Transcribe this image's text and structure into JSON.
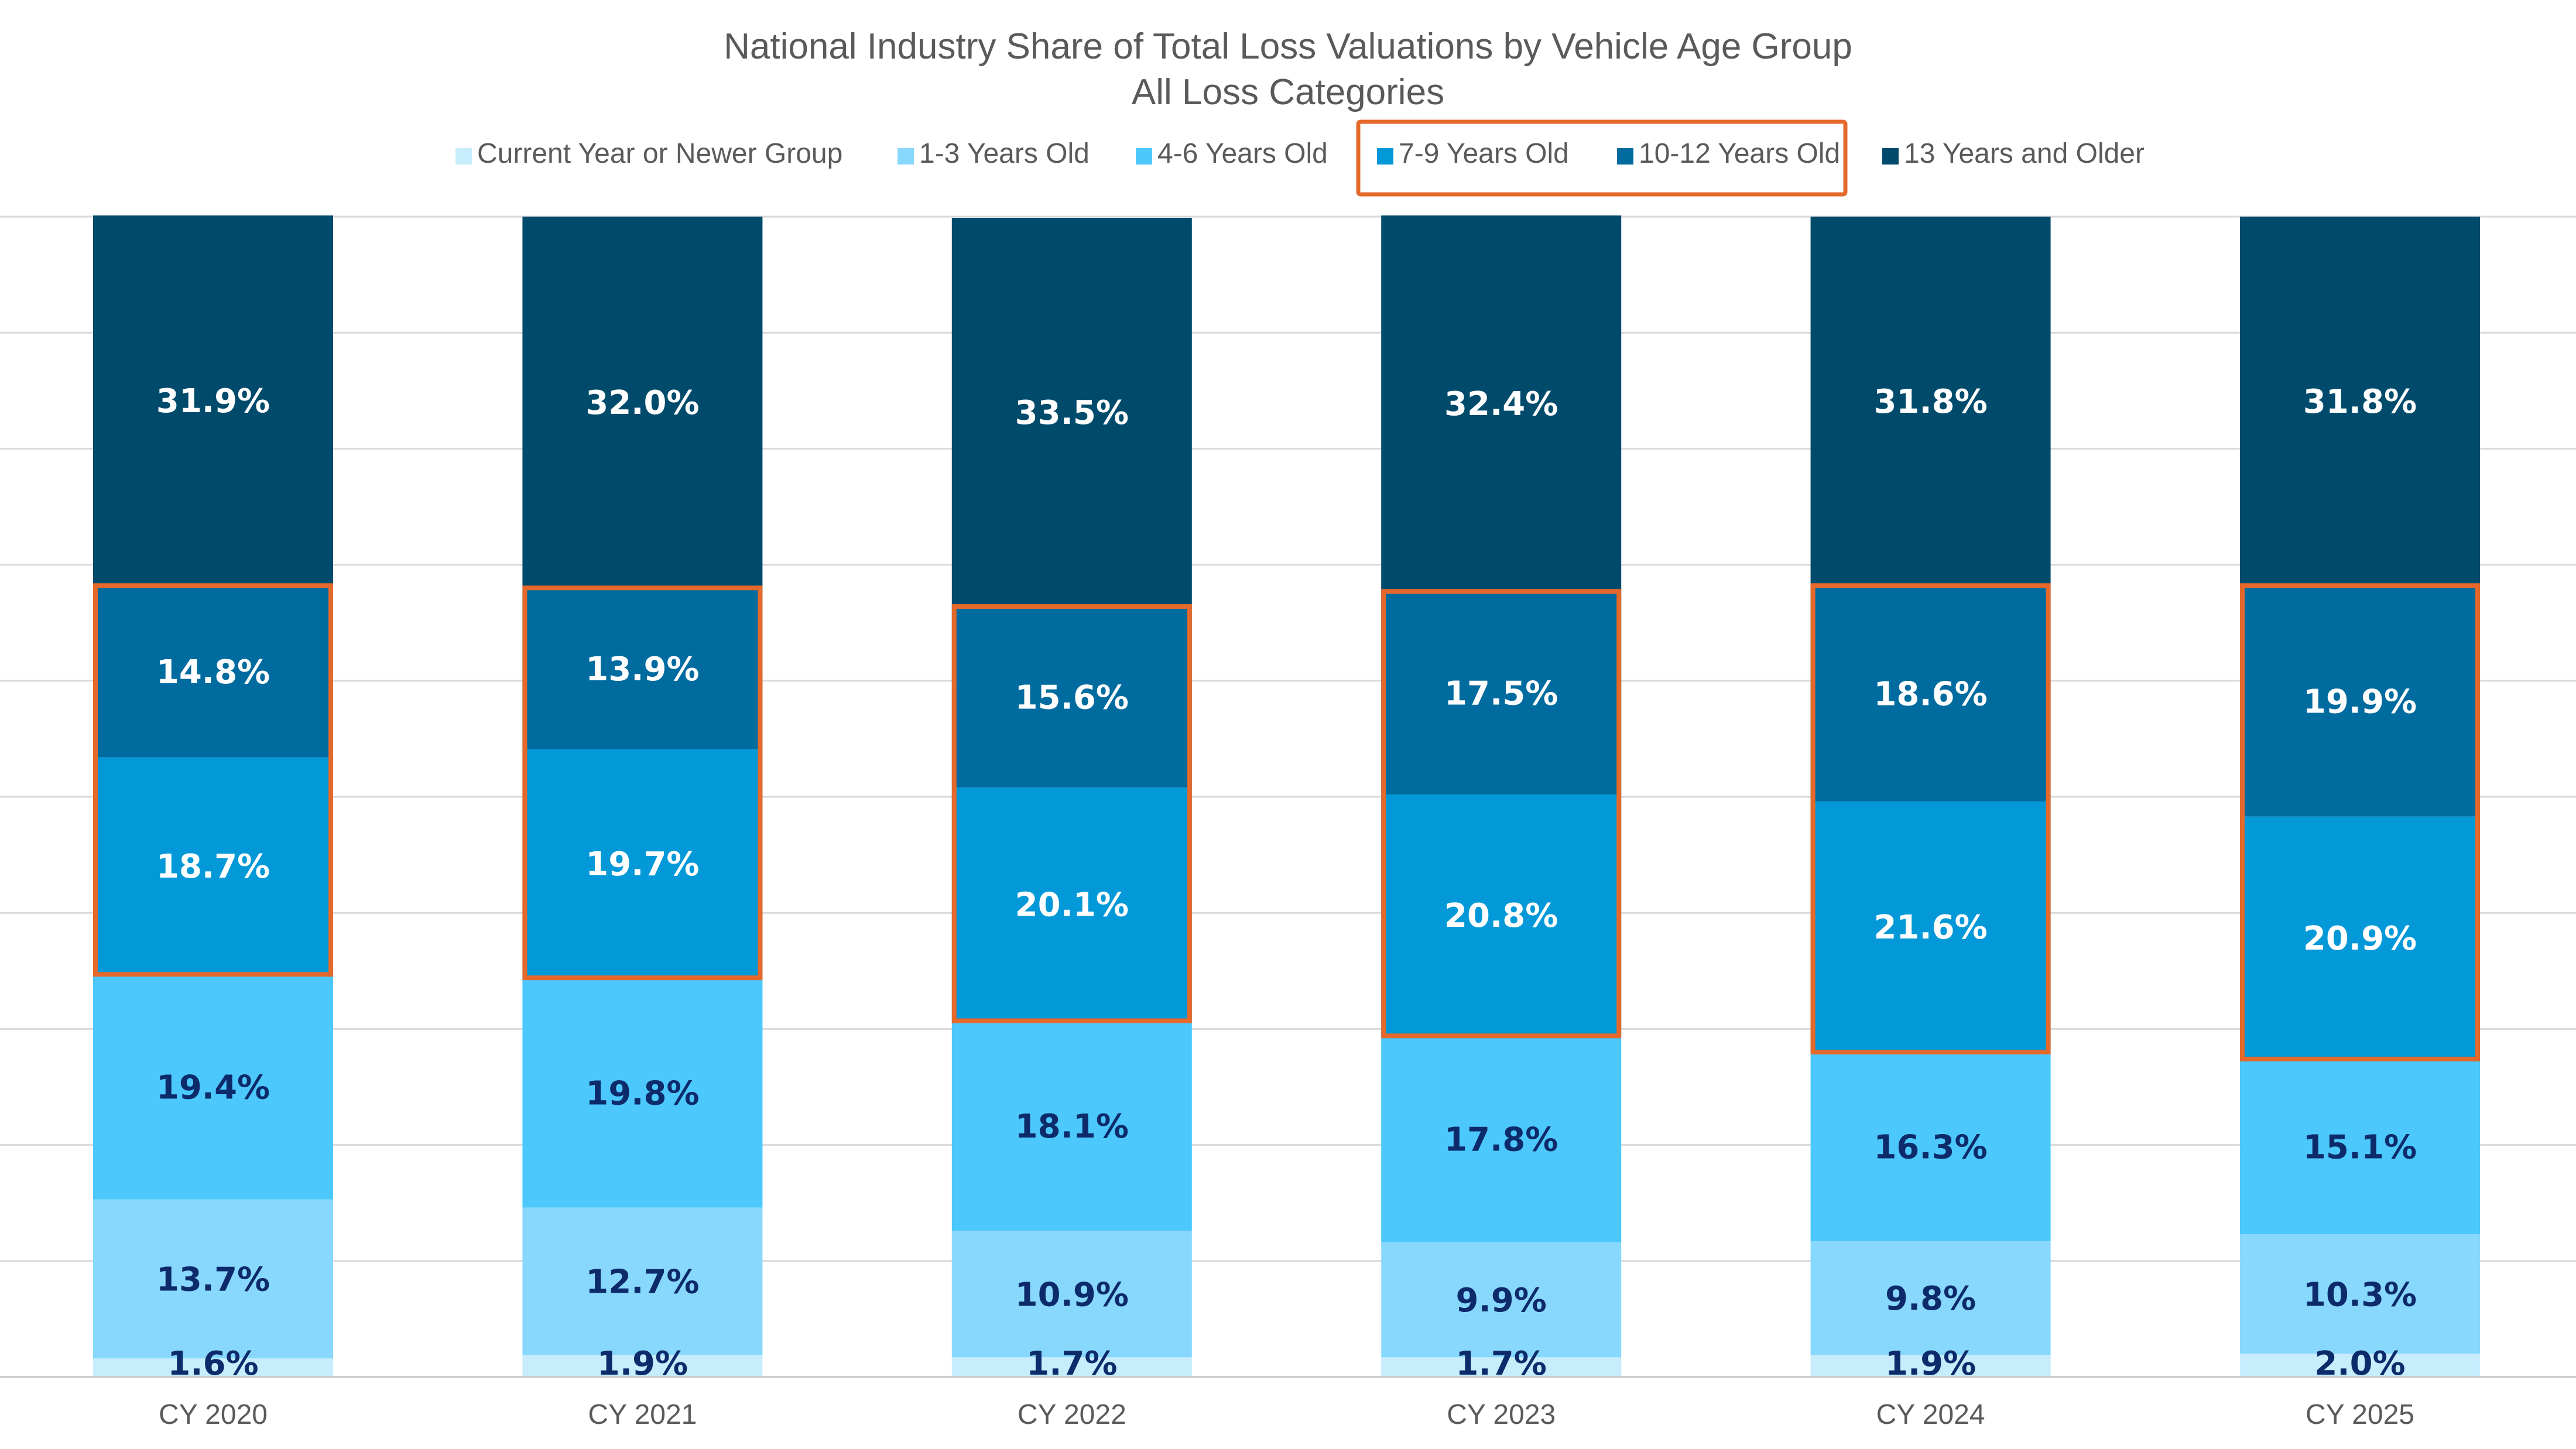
{
  "chart_data": {
    "type": "bar",
    "stacked": true,
    "title": "National Industry Share of Total Loss Valuations by Vehicle Age Group",
    "subtitle": "All Loss Categories",
    "categories": [
      "CY 2020",
      "CY 2021",
      "CY 2022",
      "CY 2023",
      "CY 2024",
      "CY 2025"
    ],
    "series": [
      {
        "name": "Current Year or Newer Group",
        "color": "#c7ecfb",
        "label_color": "#0d2a6b",
        "values": [
          1.6,
          1.9,
          1.7,
          1.7,
          1.9,
          2.0
        ],
        "labels": [
          "1.6%",
          "1.9%",
          "1.7%",
          "1.7%",
          "1.9%",
          "2.0%"
        ]
      },
      {
        "name": "1-3 Years Old",
        "color": "#88d8fd",
        "label_color": "#0d2a6b",
        "values": [
          13.7,
          12.7,
          10.9,
          9.9,
          9.8,
          10.3
        ],
        "labels": [
          "13.7%",
          "12.7%",
          "10.9%",
          "9.9%",
          "9.8%",
          "10.3%"
        ]
      },
      {
        "name": "4-6 Years Old",
        "color": "#4cc8fc",
        "label_color": "#0d2a6b",
        "values": [
          19.4,
          19.8,
          18.1,
          17.8,
          16.3,
          15.1
        ],
        "labels": [
          "19.4%",
          "19.8%",
          "18.1%",
          "17.8%",
          "16.3%",
          "15.1%"
        ]
      },
      {
        "name": "7-9 Years Old",
        "color": "#0399d8",
        "label_color": "#ffffff",
        "highlighted": true,
        "values": [
          18.7,
          19.7,
          20.1,
          20.8,
          21.6,
          20.9
        ],
        "labels": [
          "18.7%",
          "19.7%",
          "20.1%",
          "20.8%",
          "21.6%",
          "20.9%"
        ]
      },
      {
        "name": "10-12 Years Old",
        "color": "#006b9f",
        "label_color": "#ffffff",
        "highlighted": true,
        "values": [
          14.8,
          13.9,
          15.6,
          17.5,
          18.6,
          19.9
        ],
        "labels": [
          "14.8%",
          "13.9%",
          "15.6%",
          "17.5%",
          "18.6%",
          "19.9%"
        ]
      },
      {
        "name": "13 Years and Older",
        "color": "#004b6b",
        "label_color": "#ffffff",
        "values": [
          31.9,
          32.0,
          33.5,
          32.4,
          31.8,
          31.8
        ],
        "labels": [
          "31.9%",
          "32.0%",
          "33.5%",
          "32.4%",
          "31.8%",
          "31.8%"
        ]
      }
    ],
    "ylim": [
      0,
      100
    ],
    "grid": true,
    "legend_position": "top",
    "highlight_color": "#e4692a"
  }
}
